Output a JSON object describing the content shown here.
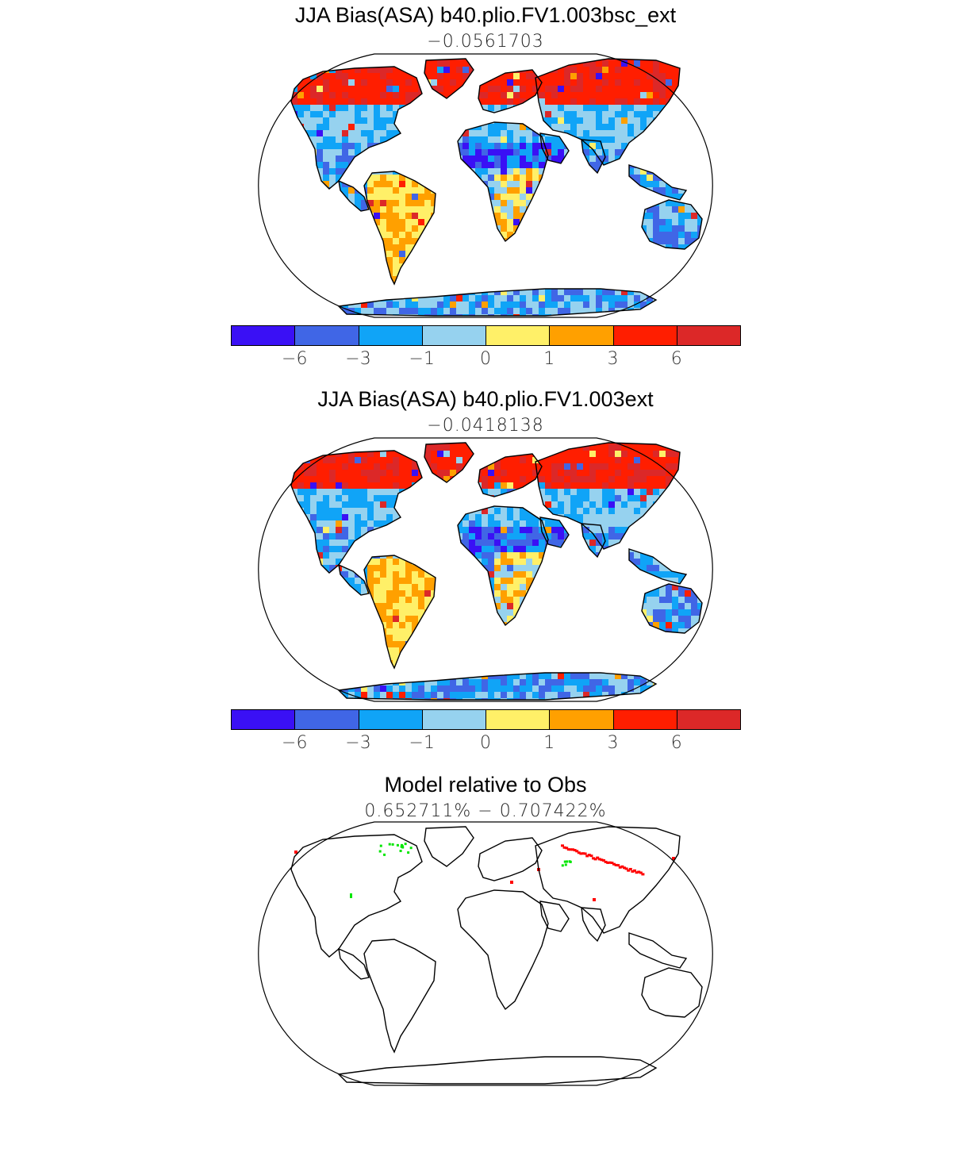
{
  "panels": [
    {
      "title": "JJA Bias(ASA) b40.plio.FV1.003bsc_ext",
      "subtitle": "−0.0561703",
      "type": "bias"
    },
    {
      "title": "JJA Bias(ASA) b40.plio.FV1.003ext",
      "subtitle": "−0.0418138",
      "type": "bias"
    },
    {
      "title": "Model relative to Obs",
      "subtitle": "0.652711% − 0.707422%",
      "type": "diff"
    }
  ],
  "colorbar": {
    "colors": [
      "#3a10f5",
      "#4066e6",
      "#10a4f7",
      "#96d2ef",
      "#fff068",
      "#ffa000",
      "#ff1e00",
      "#dc2828"
    ],
    "tick_labels": [
      "−6",
      "−3",
      "−1",
      "0",
      "1",
      "3",
      "6"
    ]
  },
  "diff_colors": {
    "better": "#00e600",
    "worse": "#ff0000"
  }
}
